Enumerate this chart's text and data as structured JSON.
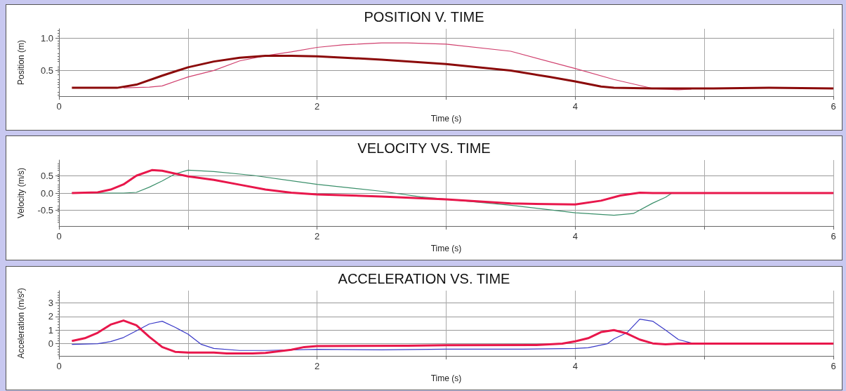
{
  "chart_data": [
    {
      "type": "line",
      "title": "POSITION V. TIME",
      "xlabel": "Time (s)",
      "ylabel": "Position (m)",
      "xlim": [
        0,
        6
      ],
      "ylim": [
        0.1,
        1.15
      ],
      "xticks": [
        0,
        {
          "value": 1,
          "label": null
        },
        2,
        {
          "value": 3,
          "label": null
        },
        4,
        {
          "value": 5,
          "label": null
        },
        6
      ],
      "yticks": [
        0.5,
        {
          "value": 1,
          "label": "1.0"
        }
      ],
      "grid": true,
      "marker": "none",
      "series": [
        {
          "color": "#8b0a0a",
          "x": [
            0.1,
            0.45,
            0.6,
            0.8,
            1.0,
            1.2,
            1.4,
            1.6,
            1.8,
            2.0,
            2.5,
            3.0,
            3.5,
            3.8,
            4.0,
            4.2,
            4.3,
            4.6,
            5.0,
            5.5,
            6.0
          ],
          "values": [
            0.23,
            0.23,
            0.28,
            0.42,
            0.55,
            0.64,
            0.7,
            0.73,
            0.73,
            0.72,
            0.67,
            0.6,
            0.5,
            0.4,
            0.33,
            0.25,
            0.23,
            0.22,
            0.22,
            0.23,
            0.22
          ]
        },
        {
          "color": "#d0406e",
          "x": [
            0.5,
            0.7,
            0.8,
            1.0,
            1.2,
            1.4,
            1.6,
            1.8,
            2.0,
            2.2,
            2.5,
            2.7,
            3.0,
            3.5,
            4.0,
            4.3,
            4.6,
            4.8,
            4.9
          ],
          "values": [
            0.23,
            0.24,
            0.26,
            0.4,
            0.5,
            0.65,
            0.73,
            0.79,
            0.86,
            0.9,
            0.93,
            0.93,
            0.91,
            0.8,
            0.53,
            0.36,
            0.22,
            0.2,
            0.21
          ]
        }
      ]
    },
    {
      "type": "line",
      "title": "VELOCITY VS. TIME",
      "xlabel": "Time (s)",
      "ylabel": "Velocity (m/s)",
      "xlim": [
        0,
        6
      ],
      "ylim": [
        -0.95,
        0.95
      ],
      "xticks": [
        0,
        {
          "value": 1,
          "label": null
        },
        2,
        {
          "value": 3,
          "label": null
        },
        4,
        {
          "value": 5,
          "label": null
        },
        6
      ],
      "yticks": [
        -0.5,
        {
          "value": 0,
          "label": "0.0"
        },
        0.5
      ],
      "grid": true,
      "marker": "none",
      "series": [
        {
          "color": "#e8174b",
          "x": [
            0.1,
            0.3,
            0.4,
            0.5,
            0.6,
            0.72,
            0.8,
            1.0,
            1.2,
            1.4,
            1.6,
            1.8,
            2.0,
            2.5,
            3.0,
            3.5,
            4.0,
            4.2,
            4.35,
            4.5,
            4.6,
            6.0
          ],
          "values": [
            0,
            0.02,
            0.1,
            0.25,
            0.5,
            0.66,
            0.64,
            0.48,
            0.38,
            0.24,
            0.1,
            0.01,
            -0.04,
            -0.1,
            -0.18,
            -0.3,
            -0.33,
            -0.22,
            -0.07,
            0.01,
            0,
            0
          ]
        },
        {
          "color": "#3a8f6a",
          "x": [
            0.1,
            0.5,
            0.6,
            0.7,
            0.8,
            0.9,
            1.0,
            1.2,
            1.5,
            2.0,
            2.5,
            2.8,
            3.0,
            3.5,
            4.0,
            4.3,
            4.45,
            4.6,
            4.7,
            4.75
          ],
          "values": [
            0,
            0,
            0.02,
            0.17,
            0.35,
            0.55,
            0.66,
            0.62,
            0.51,
            0.25,
            0.05,
            -0.11,
            null,
            -0.35,
            -0.57,
            -0.64,
            -0.59,
            -0.29,
            -0.12,
            0
          ]
        }
      ]
    },
    {
      "type": "line",
      "title": "ACCELERATION VS. TIME",
      "xlabel": "Time (s)",
      "ylabel": "Acceleration (m/s²)",
      "xlim": [
        0,
        6
      ],
      "ylim": [
        -0.9,
        3.9
      ],
      "xticks": [
        0,
        {
          "value": 1,
          "label": null
        },
        2,
        {
          "value": 3,
          "label": null
        },
        4,
        {
          "value": 5,
          "label": null
        },
        6
      ],
      "yticks": [
        0,
        1,
        2,
        3
      ],
      "grid": true,
      "marker": "none",
      "series": [
        {
          "color": "#e8174b",
          "x": [
            0.1,
            0.2,
            0.3,
            0.4,
            0.5,
            0.6,
            0.7,
            0.8,
            0.9,
            1.0,
            1.2,
            1.3,
            1.5,
            1.6,
            1.8,
            1.9,
            2.0,
            2.7,
            3.0,
            3.7,
            3.9,
            4.0,
            4.1,
            4.2,
            4.3,
            4.4,
            4.5,
            4.6,
            4.7,
            4.8,
            6.0
          ],
          "values": [
            0.2,
            0.4,
            0.8,
            1.4,
            1.7,
            1.35,
            0.5,
            -0.25,
            -0.6,
            -0.65,
            -0.65,
            -0.72,
            -0.72,
            -0.68,
            -0.45,
            -0.25,
            -0.18,
            -0.15,
            -0.11,
            -0.1,
            0,
            0.17,
            0.4,
            0.85,
            1.0,
            0.75,
            0.3,
            0.02,
            -0.05,
            0,
            0
          ]
        },
        {
          "color": "#3a3ac8",
          "x": [
            0.1,
            0.3,
            0.4,
            0.5,
            0.6,
            0.7,
            0.8,
            0.9,
            1.0,
            1.1,
            1.2,
            1.4,
            1.6,
            1.8,
            2.0,
            2.5,
            3.0,
            3.6,
            4.0,
            4.1,
            4.25,
            4.3,
            4.4,
            4.5,
            4.6,
            4.7,
            4.8,
            4.9,
            5.0
          ],
          "values": [
            -0.05,
            0,
            0.15,
            0.45,
            0.95,
            1.45,
            1.65,
            1.2,
            0.7,
            -0.04,
            -0.35,
            -0.5,
            -0.5,
            null,
            -0.42,
            -0.45,
            -0.4,
            -0.4,
            -0.35,
            -0.3,
            0,
            0.35,
            0.8,
            1.8,
            1.65,
            1.0,
            0.3,
            0.05,
            0
          ]
        }
      ]
    }
  ]
}
